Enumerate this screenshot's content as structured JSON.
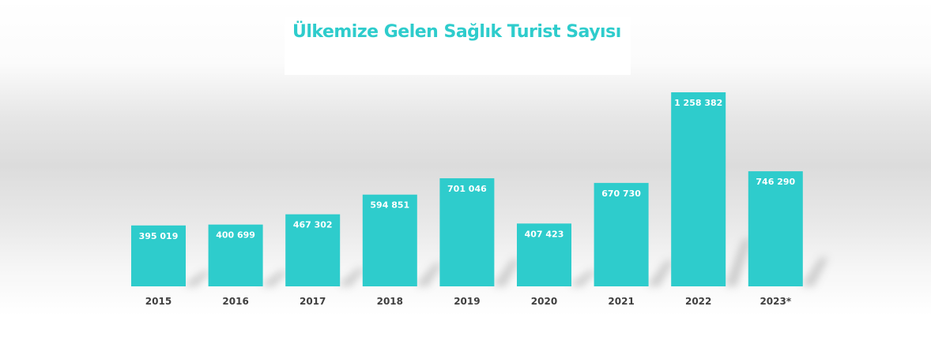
{
  "colors": {
    "bar": "#2ECCCC",
    "title": "#2ECCCC",
    "label": "#ffffff",
    "axis_text": "#404040"
  },
  "chart_data": {
    "type": "bar",
    "title": "Ülkemize Gelen Sağlık Turist Sayısı",
    "xlabel": "",
    "ylabel": "",
    "categories": [
      "2015",
      "2016",
      "2017",
      "2018",
      "2019",
      "2020",
      "2021",
      "2022",
      "2023*"
    ],
    "values": [
      395019,
      400699,
      467302,
      594851,
      701046,
      407423,
      670730,
      1258382,
      746290
    ],
    "data_labels": [
      "395 019",
      "400 699",
      "467 302",
      "594 851",
      "701 046",
      "407 423",
      "670 730",
      "1 258 382",
      "746 290"
    ],
    "ylim": [
      0,
      1258382
    ],
    "grid": false,
    "legend": "none"
  }
}
